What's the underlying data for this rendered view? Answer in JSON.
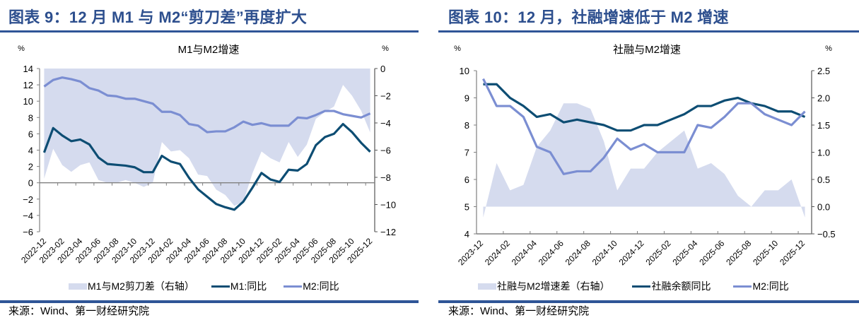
{
  "panels": [
    {
      "title": "图表 9：12 月 M1 与 M2“剪刀差”再度扩大",
      "source": "来源：Wind、第一财经研究院"
    },
    {
      "title": "图表 10：12 月，社融增速低于 M2 增速",
      "source": "来源：Wind、第一财经研究院"
    }
  ],
  "chart_data": [
    {
      "type": "line",
      "title": "M1与M2增速",
      "ylabel_left": "%",
      "ylabel_right": "%",
      "xlabel": "",
      "x": [
        "2022-12",
        "2023-01",
        "2023-02",
        "2023-03",
        "2023-04",
        "2023-05",
        "2023-06",
        "2023-07",
        "2023-08",
        "2023-09",
        "2023-10",
        "2023-11",
        "2023-12",
        "2024-01",
        "2024-02",
        "2024-03",
        "2024-04",
        "2024-05",
        "2024-06",
        "2024-07",
        "2024-08",
        "2024-09",
        "2024-10",
        "2024-11",
        "2024-12",
        "2025-01",
        "2025-02",
        "2025-03",
        "2025-04",
        "2025-05",
        "2025-06",
        "2025-07",
        "2025-08",
        "2025-09",
        "2025-10",
        "2025-11",
        "2025-12"
      ],
      "xtick_labels": [
        "2022-12",
        "2023-02",
        "2023-04",
        "2023-06",
        "2023-08",
        "2023-10",
        "2023-12",
        "2024-02",
        "2024-04",
        "2024-06",
        "2024-08",
        "2024-10",
        "2024-12",
        "2025-02",
        "2025-04",
        "2025-06",
        "2025-08",
        "2025-10",
        "2025-12"
      ],
      "ylim_left": [
        -6,
        14
      ],
      "ylim_right": [
        -12,
        0
      ],
      "yticks_left": [
        "14",
        "12",
        "10",
        "8",
        "6",
        "4",
        "2",
        "0",
        "−2",
        "−4",
        "−6"
      ],
      "yticks_right": [
        "0",
        "−2",
        "−4",
        "−6",
        "−8",
        "−10",
        "−12"
      ],
      "x_axis_crosses_left": 0,
      "grid": false,
      "legend_position": "bottom",
      "series": [
        {
          "name": "M1与M2剪刀差（右轴）",
          "type": "area",
          "axis": "right",
          "color": "#d5dbee",
          "values": [
            -8.1,
            -5.9,
            -7.1,
            -7.6,
            -7.1,
            -6.9,
            -8.2,
            -8.4,
            -8.4,
            -8.2,
            -8.4,
            -8.7,
            -8.4,
            -5.4,
            -6.1,
            -6.0,
            -6.6,
            -7.8,
            -7.9,
            -8.9,
            -9.3,
            -10.1,
            -9.8,
            -7.7,
            -6.1,
            -6.6,
            -6.9,
            -5.4,
            -6.5,
            -5.6,
            -3.7,
            -3.2,
            -2.8,
            -1.2,
            -2.0,
            -3.1,
            -4.7
          ]
        },
        {
          "name": "M1:同比",
          "type": "line",
          "axis": "left",
          "color": "#0d4d73",
          "values": [
            3.7,
            6.7,
            5.8,
            5.1,
            5.3,
            4.7,
            3.1,
            2.3,
            2.2,
            2.1,
            1.9,
            1.3,
            1.3,
            3.3,
            2.6,
            2.3,
            0.6,
            -0.8,
            -1.7,
            -2.6,
            -3.0,
            -3.3,
            -2.3,
            -0.6,
            1.2,
            0.4,
            0.1,
            1.6,
            1.5,
            2.3,
            4.6,
            5.6,
            6.0,
            7.2,
            6.2,
            4.9,
            3.8
          ]
        },
        {
          "name": "M2:同比",
          "type": "line",
          "axis": "left",
          "color": "#7b8ed2",
          "values": [
            11.8,
            12.6,
            12.9,
            12.7,
            12.4,
            11.6,
            11.3,
            10.7,
            10.6,
            10.3,
            10.3,
            10.0,
            9.7,
            8.7,
            8.7,
            8.3,
            7.2,
            7.0,
            6.2,
            6.3,
            6.3,
            6.8,
            7.5,
            7.1,
            7.3,
            7.0,
            7.0,
            7.0,
            8.0,
            7.9,
            8.3,
            8.8,
            8.8,
            8.4,
            8.2,
            8.0,
            8.5
          ]
        }
      ]
    },
    {
      "type": "line",
      "title": "社融与M2增速",
      "ylabel_left": "%",
      "ylabel_right": "%",
      "xlabel": "",
      "x": [
        "2023-12",
        "2024-01",
        "2024-02",
        "2024-03",
        "2024-04",
        "2024-05",
        "2024-06",
        "2024-07",
        "2024-08",
        "2024-09",
        "2024-10",
        "2024-11",
        "2024-12",
        "2025-01",
        "2025-02",
        "2025-03",
        "2025-04",
        "2025-05",
        "2025-06",
        "2025-07",
        "2025-08",
        "2025-09",
        "2025-10",
        "2025-11",
        "2025-12"
      ],
      "xtick_labels": [
        "2023-12",
        "2024-02",
        "2024-04",
        "2024-06",
        "2024-08",
        "2024-10",
        "2024-12",
        "2025-02",
        "2025-04",
        "2025-06",
        "2025-08",
        "2025-10",
        "2025-12"
      ],
      "ylim_left": [
        4,
        10
      ],
      "ylim_right": [
        -0.5,
        2.5
      ],
      "yticks_left": [
        "10",
        "9",
        "8",
        "7",
        "6",
        "5",
        "4"
      ],
      "yticks_right": [
        "2.5",
        "2.0",
        "1.5",
        "1.0",
        "0.5",
        "0.0",
        "−0.5"
      ],
      "x_axis_crosses_left": 4,
      "grid": false,
      "legend_position": "bottom",
      "series": [
        {
          "name": "社融与M2增速差（右轴）",
          "type": "area",
          "axis": "right",
          "color": "#d5dbee",
          "values": [
            -0.2,
            0.8,
            0.3,
            0.4,
            1.1,
            1.4,
            1.9,
            1.9,
            1.8,
            1.2,
            0.3,
            0.7,
            0.7,
            1.0,
            1.2,
            1.4,
            0.7,
            0.8,
            0.6,
            0.2,
            0.0,
            0.3,
            0.3,
            0.5,
            -0.2
          ]
        },
        {
          "name": "社融余额同比",
          "type": "line",
          "axis": "left",
          "color": "#0d4d73",
          "values": [
            9.5,
            9.5,
            9.0,
            8.7,
            8.3,
            8.4,
            8.1,
            8.2,
            8.1,
            8.0,
            7.8,
            7.8,
            8.0,
            8.0,
            8.2,
            8.4,
            8.7,
            8.7,
            8.9,
            9.0,
            8.8,
            8.7,
            8.5,
            8.5,
            8.3
          ]
        },
        {
          "name": "M2:同比",
          "type": "line",
          "axis": "left",
          "color": "#7b8ed2",
          "values": [
            9.7,
            8.7,
            8.7,
            8.3,
            7.2,
            7.0,
            6.2,
            6.3,
            6.3,
            6.8,
            7.5,
            7.1,
            7.3,
            7.0,
            7.0,
            7.0,
            8.0,
            7.9,
            8.3,
            8.8,
            8.8,
            8.4,
            8.2,
            8.0,
            8.5
          ]
        }
      ]
    }
  ]
}
